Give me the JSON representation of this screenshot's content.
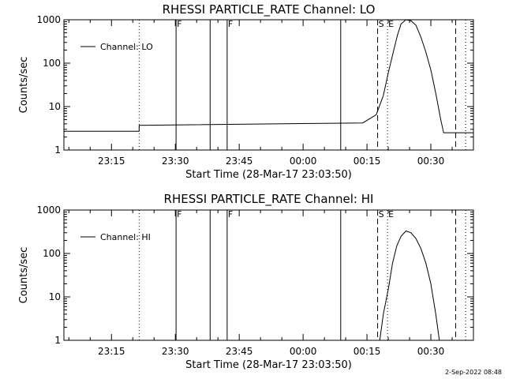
{
  "timestamp": "2-Sep-2022 08:48",
  "chart_data": [
    {
      "type": "line",
      "title": "RHESSI PARTICLE_RATE Channel: LO",
      "xlabel": "Start Time (28-Mar-17 23:03:50)",
      "ylabel": "Counts/sec",
      "legend": {
        "label": "Channel: LO",
        "position": "top-left"
      },
      "y_scale": "log",
      "ylim": [
        1,
        1000
      ],
      "y_ticks": [
        {
          "value": 1,
          "label": "1"
        },
        {
          "value": 10,
          "label": "10"
        },
        {
          "value": 100,
          "label": "100"
        },
        {
          "value": 1000,
          "label": "1000"
        }
      ],
      "xlim": [
        "23:03:50",
        "00:40:00"
      ],
      "x_ticks": [
        {
          "time": "23:15",
          "label": "23:15"
        },
        {
          "time": "23:30",
          "label": "23:30"
        },
        {
          "time": "23:45",
          "label": "23:45"
        },
        {
          "time": "00:00",
          "label": "00:00"
        },
        {
          "time": "00:15",
          "label": "00:15"
        },
        {
          "time": "00:30",
          "label": "00:30"
        }
      ],
      "markers": [
        {
          "time": "23:21:30",
          "style": "dotted",
          "flag": ""
        },
        {
          "time": "23:30:10",
          "style": "solid",
          "flag": "F"
        },
        {
          "time": "23:38:10",
          "style": "solid",
          "flag": ""
        },
        {
          "time": "23:42:10",
          "style": "solid",
          "flag": "F"
        },
        {
          "time": "00:08:50",
          "style": "solid",
          "flag": ""
        },
        {
          "time": "00:17:30",
          "style": "dashed",
          "flag": "S"
        },
        {
          "time": "00:19:50",
          "style": "dotted",
          "flag": "E"
        },
        {
          "time": "00:35:50",
          "style": "dashed",
          "flag": ""
        },
        {
          "time": "00:38:10",
          "style": "dotted",
          "flag": ""
        }
      ],
      "series": [
        {
          "name": "",
          "x": [
            "23:03:50",
            "23:21:30",
            "23:21:31",
            "00:14:00",
            "00:17:10",
            "00:18:50",
            "00:20:00",
            "00:21:10",
            "00:22:10",
            "00:23:00",
            "00:24:10",
            "00:25:20",
            "00:26:30",
            "00:27:40",
            "00:28:50",
            "00:30:00",
            "00:31:10",
            "00:32:20",
            "00:33:00",
            "00:40:00"
          ],
          "y": [
            2.7,
            2.7,
            3.7,
            4.2,
            6.5,
            18,
            60,
            180,
            450,
            800,
            1000,
            950,
            750,
            400,
            180,
            70,
            20,
            5,
            2.5,
            2.5
          ]
        }
      ]
    },
    {
      "type": "line",
      "title": "RHESSI PARTICLE_RATE Channel: HI",
      "xlabel": "Start Time (28-Mar-17 23:03:50)",
      "ylabel": "Counts/sec",
      "legend": {
        "label": "Channel: HI",
        "position": "top-left"
      },
      "y_scale": "log",
      "ylim": [
        1,
        1000
      ],
      "y_ticks": [
        {
          "value": 1,
          "label": "1"
        },
        {
          "value": 10,
          "label": "10"
        },
        {
          "value": 100,
          "label": "100"
        },
        {
          "value": 1000,
          "label": "1000"
        }
      ],
      "xlim": [
        "23:03:50",
        "00:40:00"
      ],
      "x_ticks": [
        {
          "time": "23:15",
          "label": "23:15"
        },
        {
          "time": "23:30",
          "label": "23:30"
        },
        {
          "time": "23:45",
          "label": "23:45"
        },
        {
          "time": "00:00",
          "label": "00:00"
        },
        {
          "time": "00:15",
          "label": "00:15"
        },
        {
          "time": "00:30",
          "label": "00:30"
        }
      ],
      "markers": [
        {
          "time": "23:21:30",
          "style": "dotted",
          "flag": ""
        },
        {
          "time": "23:30:10",
          "style": "solid",
          "flag": "F"
        },
        {
          "time": "23:38:10",
          "style": "solid",
          "flag": ""
        },
        {
          "time": "23:42:10",
          "style": "solid",
          "flag": "F"
        },
        {
          "time": "00:08:50",
          "style": "solid",
          "flag": ""
        },
        {
          "time": "00:17:30",
          "style": "dashed",
          "flag": "S"
        },
        {
          "time": "00:19:50",
          "style": "dotted",
          "flag": "E"
        },
        {
          "time": "00:35:50",
          "style": "dashed",
          "flag": ""
        },
        {
          "time": "00:38:10",
          "style": "dotted",
          "flag": ""
        }
      ],
      "series": [
        {
          "name": "",
          "x": [
            "00:18:00",
            "00:18:50",
            "00:20:00",
            "00:21:00",
            "00:22:00",
            "00:23:00",
            "00:24:10",
            "00:25:20",
            "00:26:30",
            "00:27:40",
            "00:28:50",
            "00:30:00",
            "00:31:10",
            "00:32:00"
          ],
          "y": [
            1,
            4,
            15,
            60,
            150,
            250,
            330,
            300,
            220,
            130,
            60,
            20,
            4,
            1
          ]
        }
      ]
    }
  ]
}
